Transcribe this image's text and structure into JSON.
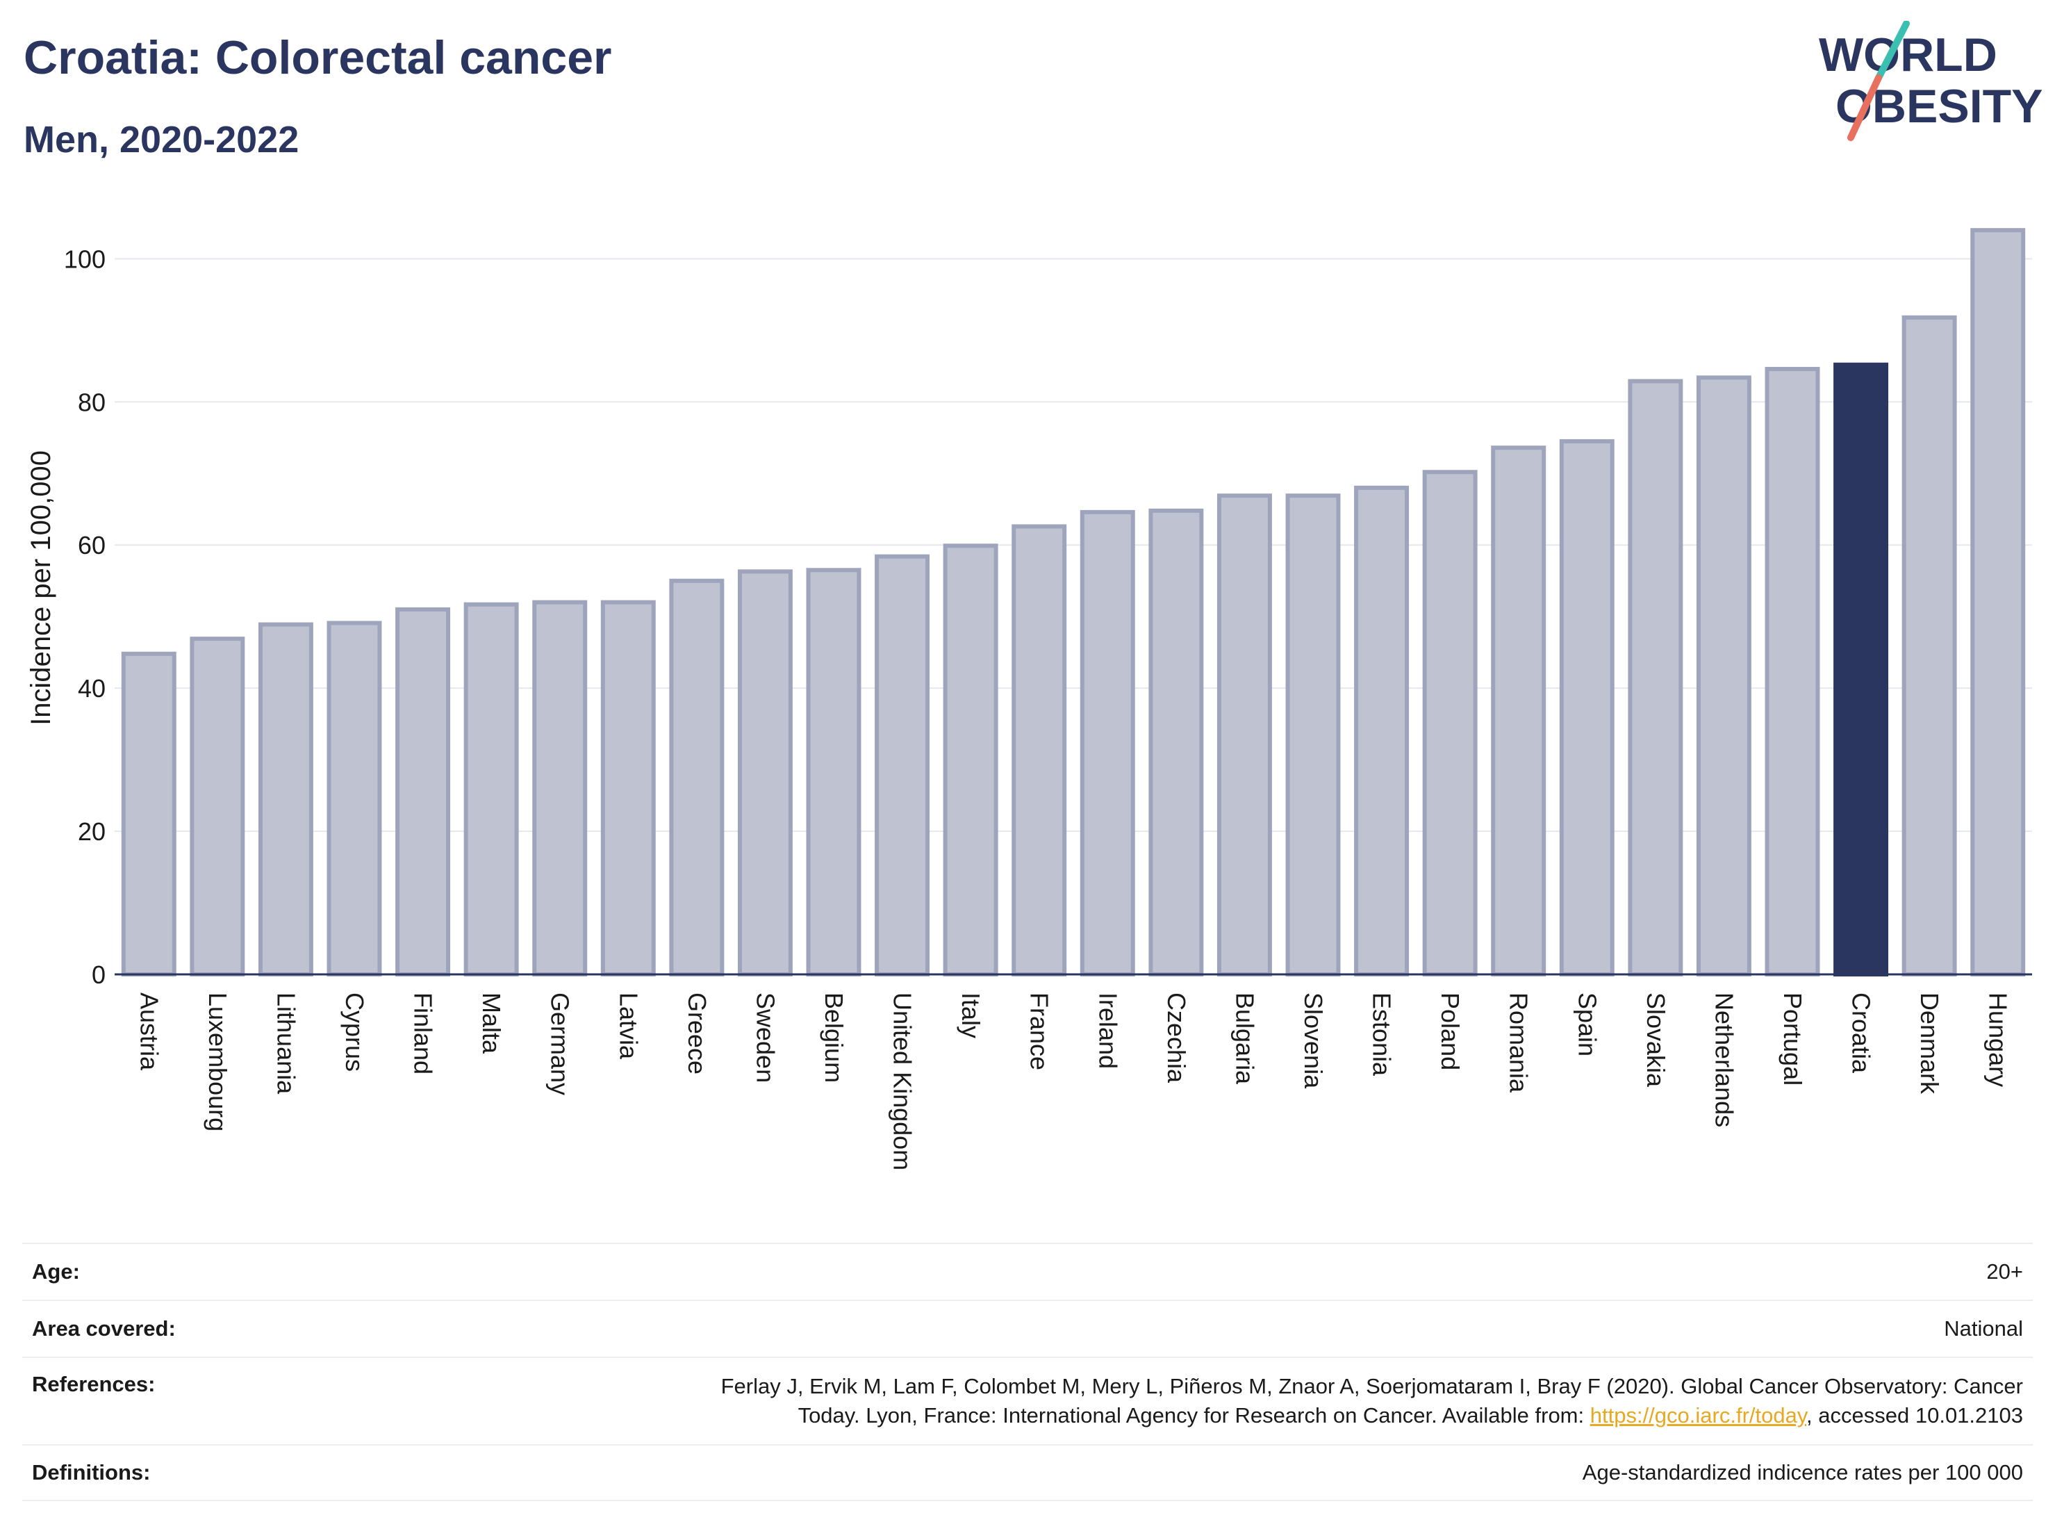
{
  "header": {
    "title": "Croatia: Colorectal cancer",
    "subtitle": "Men, 2020-2022"
  },
  "logo": {
    "line1": "WORLD",
    "line2": "OBESITY",
    "colors": {
      "text": "#2a3560",
      "teal": "#3bbfb0",
      "coral": "#e8705e"
    }
  },
  "colors": {
    "bar": "#bfc3d1",
    "bar_edge": "#9ea4bb",
    "highlight": "#2a3560",
    "grid": "#e6e8ee",
    "axis": "#2a3560",
    "text": "#1a1a1a"
  },
  "chart_data": {
    "type": "bar",
    "title": "Croatia: Colorectal cancer",
    "subtitle": "Men, 2020-2022",
    "xlabel": "",
    "ylabel": "Incidence per 100,000",
    "ylim": [
      0,
      108
    ],
    "yticks": [
      0,
      20,
      40,
      60,
      80,
      100
    ],
    "grid": true,
    "highlight": "Croatia",
    "categories": [
      "Austria",
      "Luxembourg",
      "Lithuania",
      "Cyprus",
      "Finland",
      "Malta",
      "Germany",
      "Latvia",
      "Greece",
      "Sweden",
      "Belgium",
      "United Kingdom",
      "Italy",
      "France",
      "Ireland",
      "Czechia",
      "Bulgaria",
      "Slovenia",
      "Estonia",
      "Poland",
      "Romania",
      "Spain",
      "Slovakia",
      "Netherlands",
      "Portugal",
      "Croatia",
      "Denmark",
      "Hungary"
    ],
    "values": [
      44.8,
      46.9,
      48.9,
      49.1,
      51.0,
      51.7,
      52.0,
      52.0,
      55.0,
      56.3,
      56.5,
      58.4,
      59.9,
      62.6,
      64.6,
      64.8,
      66.9,
      66.9,
      68.0,
      70.2,
      73.6,
      74.5,
      82.9,
      83.4,
      84.6,
      85.2,
      91.8,
      104.0
    ]
  },
  "info_table": [
    {
      "label": "Age:",
      "value": [
        "20+"
      ]
    },
    {
      "label": "Area covered:",
      "value": [
        "National"
      ]
    },
    {
      "label": "References:",
      "value": [
        "Ferlay J, Ervik M, Lam F, Colombet M, Mery L, Piñeros M, Znaor A, Soerjomataram I, Bray F (2020). Global Cancer Observatory: Cancer",
        "Today. Lyon, France: International Agency for Research on Cancer. Available from: ",
        "https://gco.iarc.fr/today",
        ", accessed 10.01.2103"
      ]
    },
    {
      "label": "Definitions:",
      "value": [
        "Age-standardized indicence rates per 100 000"
      ]
    }
  ]
}
